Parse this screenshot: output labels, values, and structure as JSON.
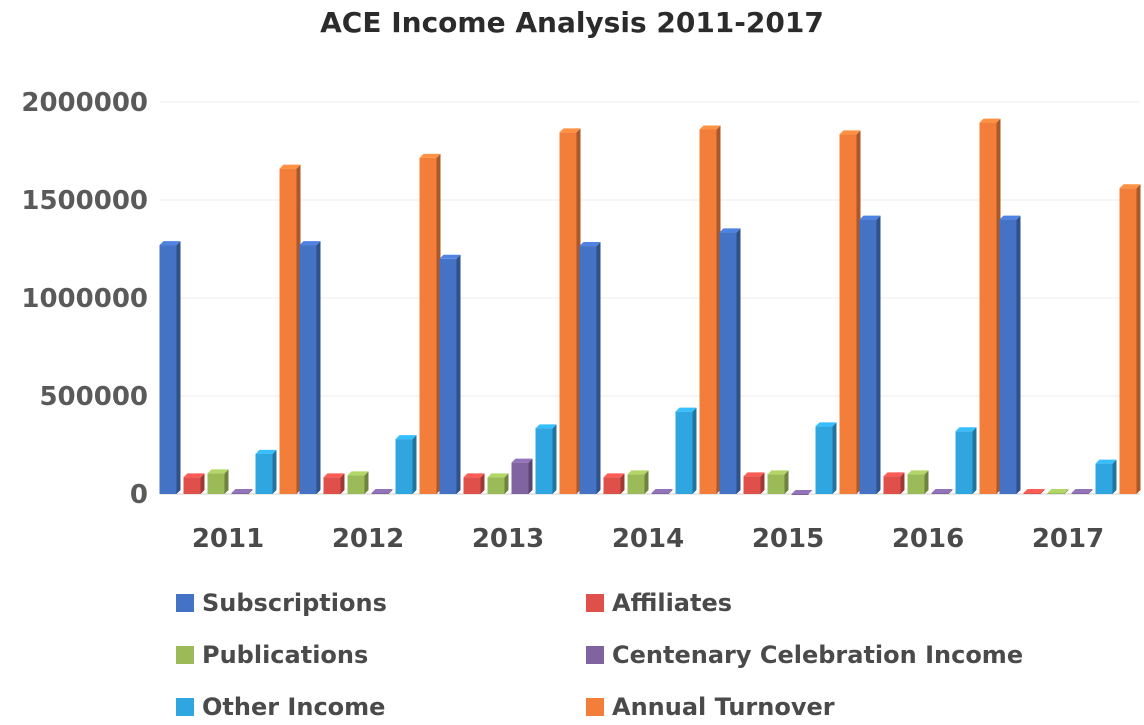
{
  "chart_data": {
    "type": "bar",
    "title": "ACE Income Analysis 2011-2017",
    "categories": [
      "2011",
      "2012",
      "2013",
      "2014",
      "2015",
      "2016",
      "2017"
    ],
    "yticks": [
      "0",
      "500000",
      "1000000",
      "1500000",
      "2000000"
    ],
    "ylim": [
      0,
      2000000
    ],
    "legend_position": "bottom",
    "series": [
      {
        "name": "Subscriptions",
        "color": "#4472C4",
        "values": [
          1270000,
          1270000,
          1200000,
          1265000,
          1335000,
          1400000,
          1400000
        ]
      },
      {
        "name": "Affiliates",
        "color": "#E0504A",
        "values": [
          85000,
          85000,
          85000,
          85000,
          90000,
          90000,
          5000
        ]
      },
      {
        "name": "Publications",
        "color": "#9BBB59",
        "values": [
          105000,
          95000,
          85000,
          100000,
          100000,
          100000,
          5000
        ]
      },
      {
        "name": "Centenary Celebration Income",
        "color": "#8064A2",
        "values": [
          5000,
          5000,
          160000,
          5000,
          0,
          5000,
          5000
        ]
      },
      {
        "name": "Other Income",
        "color": "#2FA6E0",
        "values": [
          205000,
          280000,
          335000,
          420000,
          345000,
          320000,
          155000
        ]
      },
      {
        "name": "Annual Turnover",
        "color": "#F37E3A",
        "values": [
          1660000,
          1715000,
          1845000,
          1860000,
          1835000,
          1895000,
          1560000
        ]
      }
    ]
  }
}
